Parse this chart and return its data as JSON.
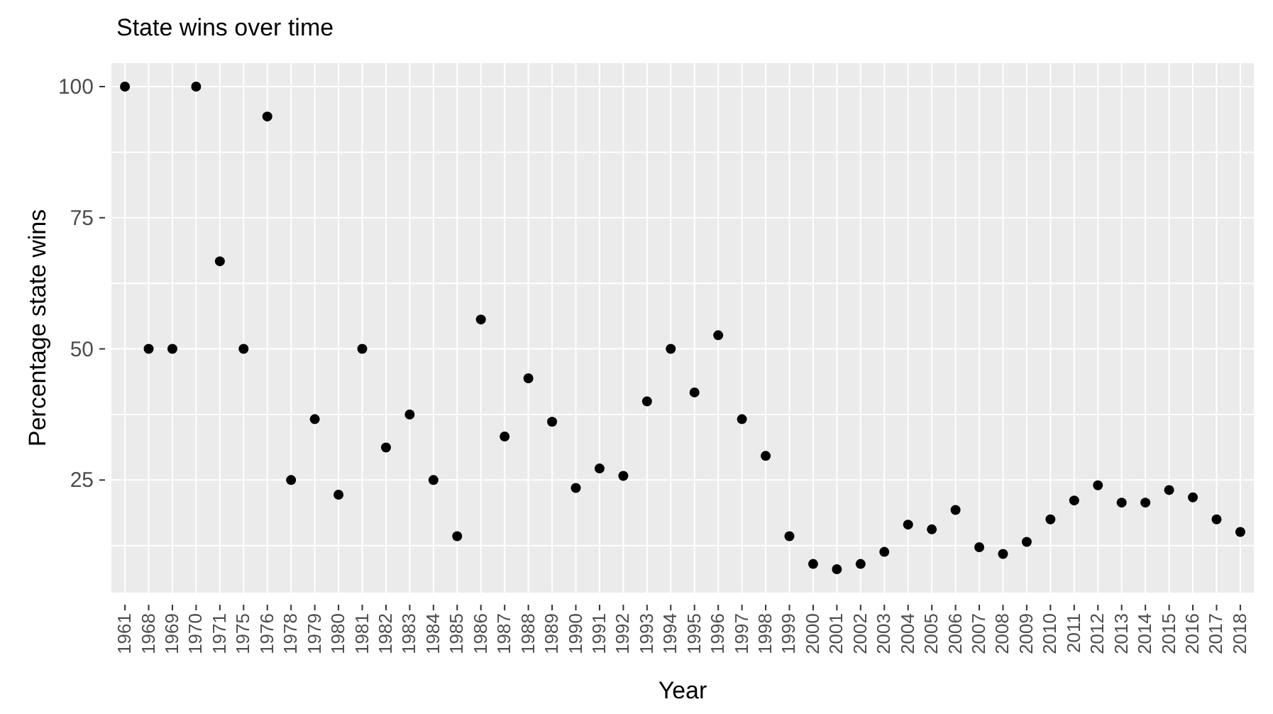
{
  "chart_data": {
    "type": "scatter",
    "title": "State wins over time",
    "xlabel": "Year",
    "ylabel": "Percentage state wins",
    "categories": [
      "1961",
      "1968",
      "1969",
      "1970",
      "1971",
      "1975",
      "1976",
      "1978",
      "1979",
      "1980",
      "1981",
      "1982",
      "1983",
      "1984",
      "1985",
      "1986",
      "1987",
      "1988",
      "1989",
      "1990",
      "1991",
      "1992",
      "1993",
      "1994",
      "1995",
      "1996",
      "1997",
      "1998",
      "1999",
      "2000",
      "2001",
      "2002",
      "2003",
      "2004",
      "2005",
      "2006",
      "2007",
      "2008",
      "2009",
      "2010",
      "2011",
      "2012",
      "2013",
      "2014",
      "2015",
      "2016",
      "2017",
      "2018"
    ],
    "series": [
      {
        "color": "#000000",
        "values": [
          100,
          50,
          50,
          100,
          66.7,
          50,
          94.3,
          25,
          36.6,
          22.2,
          50,
          31.2,
          37.5,
          25,
          14.3,
          55.6,
          33.3,
          44.4,
          36.1,
          23.5,
          27.2,
          25.8,
          40,
          50,
          41.7,
          52.6,
          36.6,
          29.6,
          14.3,
          9,
          8,
          9,
          11.3,
          16.5,
          15.6,
          19.3,
          12.2,
          10.9,
          13.2,
          17.5,
          21.1,
          24,
          20.7,
          20.7,
          23.1,
          21.7,
          17.5,
          15.1
        ]
      }
    ],
    "ylim": [
      3.4,
      104.6
    ],
    "yticks": [
      {
        "value": 12.5,
        "label": null
      },
      25,
      {
        "value": 37.5,
        "label": null
      },
      50,
      {
        "value": 62.5,
        "label": null
      },
      75,
      {
        "value": 87.5,
        "label": null
      },
      100
    ],
    "grid": true,
    "marker": "circle"
  }
}
